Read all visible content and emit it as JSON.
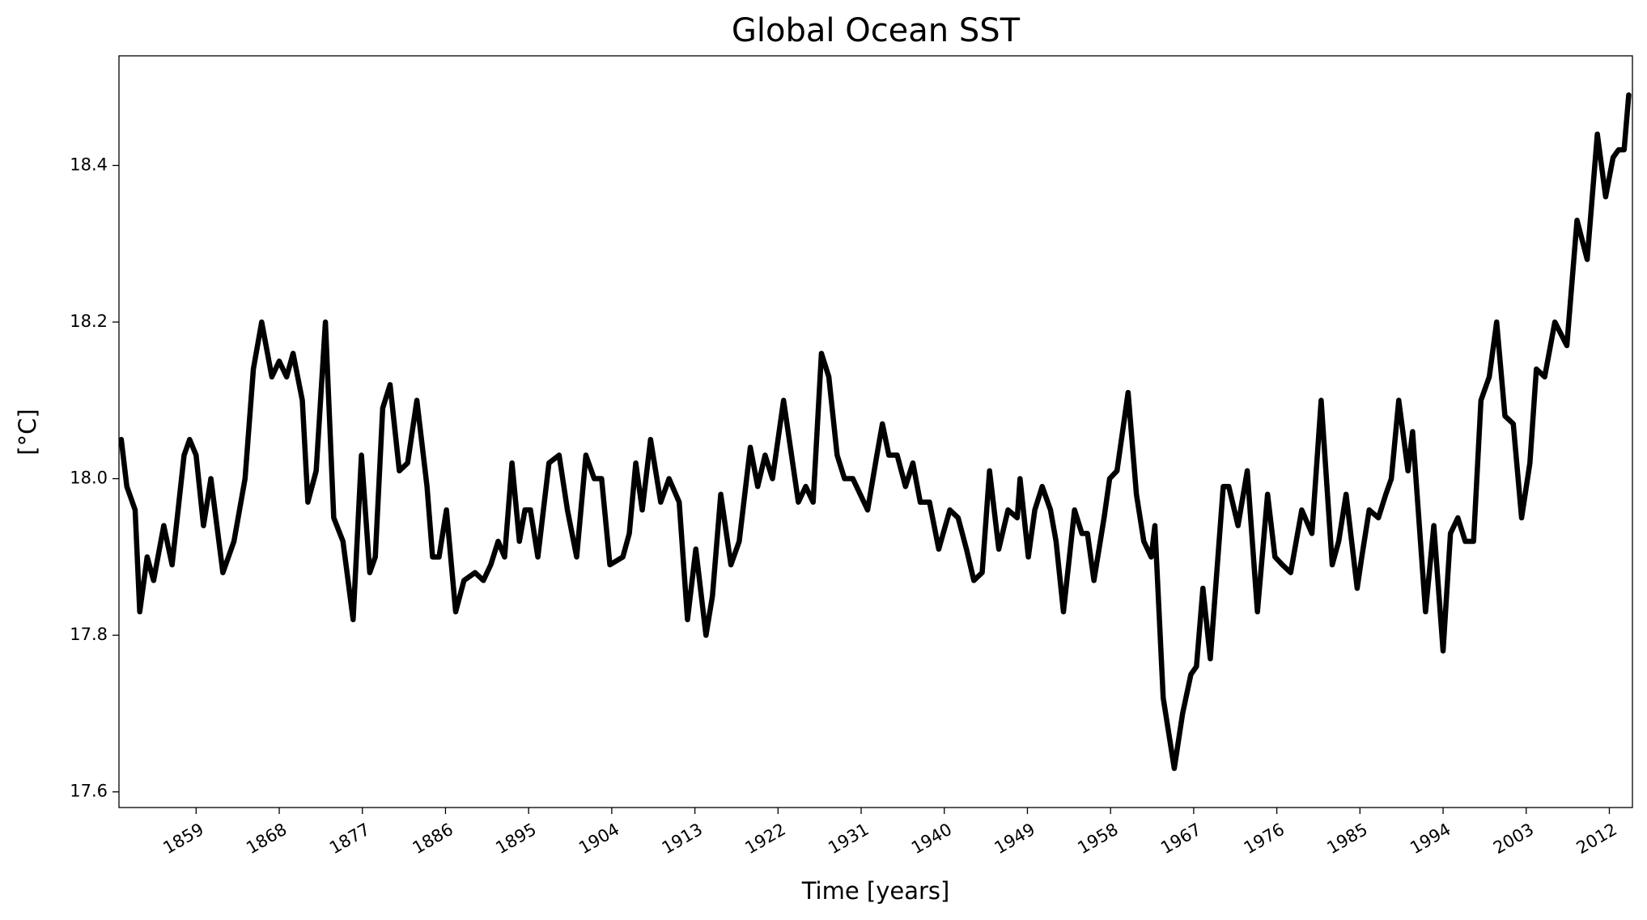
{
  "chart_data": {
    "type": "line",
    "title": "Global Ocean SST",
    "xlabel": "Time [years]",
    "ylabel": "[°C]",
    "xlim": [
      1850.65,
      2014.5
    ],
    "ylim": [
      17.58,
      18.54
    ],
    "xticks": [
      1859,
      1868,
      1877,
      1886,
      1895,
      1904,
      1913,
      1922,
      1931,
      1940,
      1949,
      1958,
      1967,
      1976,
      1985,
      1994,
      2003,
      2012
    ],
    "yticks": [
      {
        "value": 17.6,
        "label": "17.6"
      },
      {
        "value": 17.8,
        "label": "17.8"
      },
      {
        "value": 18.0,
        "label": "18.0"
      },
      {
        "value": 18.2,
        "label": "18.2"
      },
      {
        "value": 18.4,
        "label": "18.4"
      }
    ],
    "grid": false,
    "series": [
      {
        "color": "#000000",
        "x": [
          1850.9,
          1851.5,
          1852.4,
          1852.9,
          1853.7,
          1854.4,
          1855.5,
          1856.4,
          1857.7,
          1858.3,
          1859.0,
          1859.8,
          1860.6,
          1861.9,
          1863.1,
          1864.3,
          1865.2,
          1866.1,
          1867.2,
          1868.0,
          1868.8,
          1869.5,
          1870.5,
          1871.1,
          1872.0,
          1873.0,
          1873.9,
          1874.9,
          1876.0,
          1876.9,
          1877.8,
          1878.4,
          1879.2,
          1880.0,
          1881.0,
          1881.9,
          1882.9,
          1884.0,
          1884.6,
          1885.3,
          1886.1,
          1887.1,
          1888.0,
          1889.2,
          1890.1,
          1890.9,
          1891.7,
          1892.4,
          1893.2,
          1894.0,
          1894.6,
          1895.2,
          1896.0,
          1897.2,
          1898.3,
          1899.2,
          1900.2,
          1901.2,
          1902.1,
          1902.9,
          1903.8,
          1905.2,
          1905.9,
          1906.6,
          1907.3,
          1908.2,
          1909.3,
          1910.2,
          1911.3,
          1912.2,
          1913.1,
          1914.2,
          1914.9,
          1915.8,
          1916.9,
          1917.8,
          1919.0,
          1919.8,
          1920.6,
          1921.4,
          1922.6,
          1924.2,
          1925.0,
          1925.8,
          1926.7,
          1927.5,
          1928.4,
          1929.2,
          1930.1,
          1930.9,
          1931.7,
          1932.7,
          1933.3,
          1934.0,
          1934.9,
          1935.8,
          1936.6,
          1937.4,
          1938.4,
          1939.4,
          1940.6,
          1941.5,
          1942.4,
          1943.2,
          1944.1,
          1944.9,
          1945.9,
          1946.9,
          1947.9,
          1948.2,
          1949.1,
          1949.8,
          1950.6,
          1951.5,
          1952.1,
          1952.9,
          1954.1,
          1954.9,
          1955.5,
          1956.2,
          1957.3,
          1957.9,
          1958.7,
          1959.9,
          1960.8,
          1961.6,
          1962.4,
          1962.8,
          1963.7,
          1964.9,
          1965.8,
          1966.7,
          1967.3,
          1968.0,
          1968.8,
          1969.5,
          1970.2,
          1970.8,
          1971.8,
          1972.8,
          1973.9,
          1975.0,
          1975.8,
          1976.6,
          1977.5,
          1978.7,
          1979.8,
          1980.8,
          1982.0,
          1982.7,
          1983.5,
          1984.7,
          1985.2,
          1986.0,
          1987.0,
          1987.8,
          1988.4,
          1989.2,
          1990.2,
          1990.7,
          1992.1,
          1993.0,
          1994.0,
          1994.8,
          1995.6,
          1996.4,
          1997.3,
          1998.1,
          1999.0,
          1999.8,
          2000.7,
          2001.6,
          2002.5,
          2003.4,
          2004.1,
          2005.0,
          2006.1,
          2007.4,
          2008.5,
          2009.6,
          2010.7,
          2011.6,
          2012.4,
          2013.0,
          2013.6,
          2014.1
        ],
        "values": [
          18.05,
          17.99,
          17.96,
          17.83,
          17.9,
          17.87,
          17.94,
          17.89,
          18.03,
          18.05,
          18.03,
          17.94,
          18.0,
          17.88,
          17.92,
          18.0,
          18.14,
          18.2,
          18.13,
          18.15,
          18.13,
          18.16,
          18.1,
          17.97,
          18.01,
          18.2,
          17.95,
          17.92,
          17.82,
          18.03,
          17.88,
          17.9,
          18.09,
          18.12,
          18.01,
          18.02,
          18.1,
          17.99,
          17.9,
          17.9,
          17.96,
          17.83,
          17.87,
          17.88,
          17.87,
          17.89,
          17.92,
          17.9,
          18.02,
          17.92,
          17.96,
          17.96,
          17.9,
          18.02,
          18.03,
          17.96,
          17.9,
          18.03,
          18.0,
          18.0,
          17.89,
          17.9,
          17.93,
          18.02,
          17.96,
          18.05,
          17.97,
          18.0,
          17.97,
          17.82,
          17.91,
          17.8,
          17.85,
          17.98,
          17.89,
          17.92,
          18.04,
          17.99,
          18.03,
          18.0,
          18.1,
          17.97,
          17.99,
          17.97,
          18.16,
          18.13,
          18.03,
          18.0,
          18.0,
          17.98,
          17.96,
          18.03,
          18.07,
          18.03,
          18.03,
          17.99,
          18.02,
          17.97,
          17.97,
          17.91,
          17.96,
          17.95,
          17.91,
          17.87,
          17.88,
          18.01,
          17.91,
          17.96,
          17.95,
          18.0,
          17.9,
          17.96,
          17.99,
          17.96,
          17.92,
          17.83,
          17.96,
          17.93,
          17.93,
          17.87,
          17.95,
          18.0,
          18.01,
          18.11,
          17.98,
          17.92,
          17.9,
          17.94,
          17.72,
          17.63,
          17.7,
          17.75,
          17.76,
          17.86,
          17.77,
          17.88,
          17.99,
          17.99,
          17.94,
          18.01,
          17.83,
          17.98,
          17.9,
          17.89,
          17.88,
          17.96,
          17.93,
          18.1,
          17.89,
          17.92,
          17.98,
          17.86,
          17.9,
          17.96,
          17.95,
          17.98,
          18.0,
          18.1,
          18.01,
          18.06,
          17.83,
          17.94,
          17.78,
          17.93,
          17.95,
          17.92,
          17.92,
          18.1,
          18.13,
          18.2,
          18.08,
          18.07,
          17.95,
          18.02,
          18.14,
          18.13,
          18.2,
          18.17,
          18.33,
          18.28,
          18.44,
          18.36,
          18.41,
          18.42,
          18.42,
          18.49
        ]
      }
    ]
  }
}
